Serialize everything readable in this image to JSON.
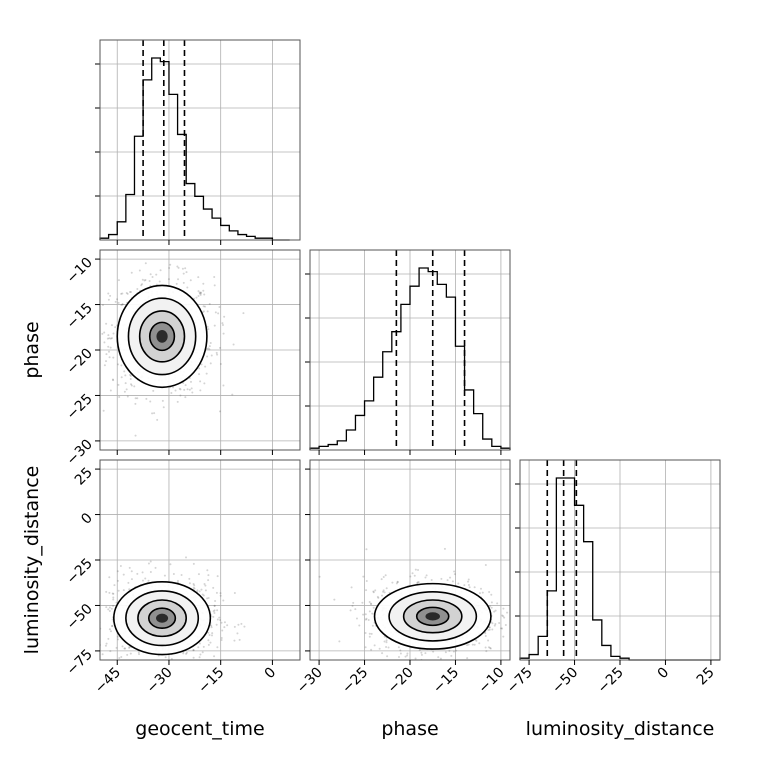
{
  "chart_data": {
    "type": "corner",
    "parameters": [
      "geocent_time",
      "phase",
      "luminosity_distance"
    ],
    "axis_titles": {
      "x": [
        "geocent_time",
        "phase",
        "luminosity_distance"
      ],
      "y": [
        "",
        "phase",
        "luminosity_distance"
      ]
    },
    "ranges": {
      "geocent_time": [
        -50,
        8
      ],
      "phase": [
        -31,
        -9
      ],
      "luminosity_distance": [
        -80,
        30
      ]
    },
    "ticks": {
      "geocent_time": {
        "values": [
          -45,
          -30,
          -15,
          0
        ],
        "labels": [
          "−45",
          "−30",
          "−15",
          "0"
        ]
      },
      "phase": {
        "values": [
          -30,
          -25,
          -20,
          -15,
          -10
        ],
        "labels": [
          "−30",
          "−25",
          "−20",
          "−15",
          "−10"
        ]
      },
      "luminosity_distance": {
        "values": [
          -75,
          -50,
          -25,
          0,
          25
        ],
        "labels": [
          "−75",
          "−50",
          "−25",
          "0",
          "25"
        ]
      }
    },
    "histograms": {
      "geocent_time": {
        "bin_edges": [
          -50,
          -47.5,
          -45,
          -42.5,
          -40,
          -37.5,
          -35,
          -32.5,
          -30,
          -27.5,
          -25,
          -22.5,
          -20,
          -17.5,
          -15,
          -12.5,
          -10,
          -7.5,
          -5,
          -2.5,
          0,
          2.5,
          5
        ],
        "counts": [
          1,
          3,
          10,
          25,
          57,
          88,
          100,
          98,
          80,
          58,
          31,
          24,
          17,
          12,
          8,
          5,
          3,
          2,
          1,
          1,
          0,
          0
        ],
        "quantiles": [
          -37.5,
          -31.5,
          -25.5
        ]
      },
      "phase": {
        "bin_edges": [
          -31,
          -30,
          -29,
          -28,
          -27,
          -26,
          -25,
          -24,
          -23,
          -22,
          -21,
          -20,
          -19,
          -18,
          -17,
          -16,
          -15,
          -14,
          -13,
          -12,
          -11,
          -10,
          -9
        ],
        "counts": [
          1,
          2,
          3,
          5,
          11,
          19,
          27,
          40,
          54,
          65,
          80,
          90,
          100,
          98,
          91,
          84,
          57,
          33,
          20,
          6,
          2,
          1
        ],
        "quantiles": [
          -21.5,
          -17.5,
          -14
        ]
      },
      "luminosity_distance": {
        "bin_edges": [
          -80,
          -75,
          -70,
          -65,
          -60,
          -55,
          -50,
          -45,
          -40,
          -35,
          -30,
          -25,
          -20,
          -15,
          -10,
          -5,
          0,
          5,
          10,
          15,
          20,
          25,
          30
        ],
        "counts": [
          1,
          3,
          13,
          38,
          100,
          100,
          85,
          65,
          22,
          8,
          2,
          1,
          0,
          0,
          0,
          0,
          0,
          0,
          0,
          0,
          0,
          0
        ],
        "quantiles": [
          -65,
          -56,
          -49
        ]
      }
    },
    "joint_densities": [
      {
        "x": "geocent_time",
        "y": "phase",
        "center": [
          -32,
          -18.5
        ],
        "spread": [
          6.5,
          2.8
        ]
      },
      {
        "x": "geocent_time",
        "y": "luminosity_distance",
        "center": [
          -32,
          -57
        ],
        "spread": [
          7,
          10
        ]
      },
      {
        "x": "phase",
        "y": "luminosity_distance",
        "center": [
          -17.5,
          -56
        ],
        "spread": [
          3.2,
          9
        ]
      }
    ],
    "grid": true,
    "quantile_lines": "dashed"
  }
}
